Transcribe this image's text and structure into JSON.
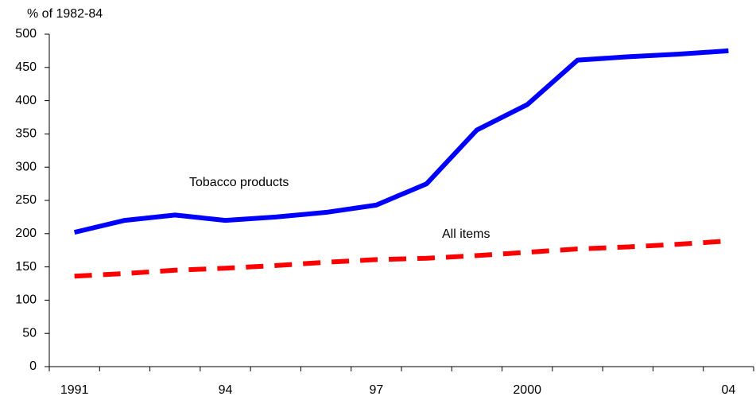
{
  "chart_data": {
    "type": "line",
    "y_label": "% of 1982-84",
    "categories": [
      "1991",
      null,
      null,
      "94",
      null,
      null,
      "97",
      null,
      null,
      "2000",
      null,
      null,
      null,
      "04"
    ],
    "series": [
      {
        "name": "Tobacco products",
        "color": "#0000ff",
        "dashed": false,
        "values": [
          202,
          220,
          228,
          220,
          225,
          232,
          243,
          275,
          356,
          394,
          461,
          466,
          470,
          475
        ]
      },
      {
        "name": "All items",
        "color": "#ff0000",
        "dashed": true,
        "values": [
          136,
          140,
          145,
          148,
          152,
          157,
          161,
          163,
          167,
          172,
          177,
          180,
          184,
          189
        ]
      }
    ],
    "ylim": [
      0,
      500
    ],
    "yticks": [
      0,
      50,
      100,
      150,
      200,
      250,
      300,
      350,
      400,
      450,
      500
    ]
  }
}
